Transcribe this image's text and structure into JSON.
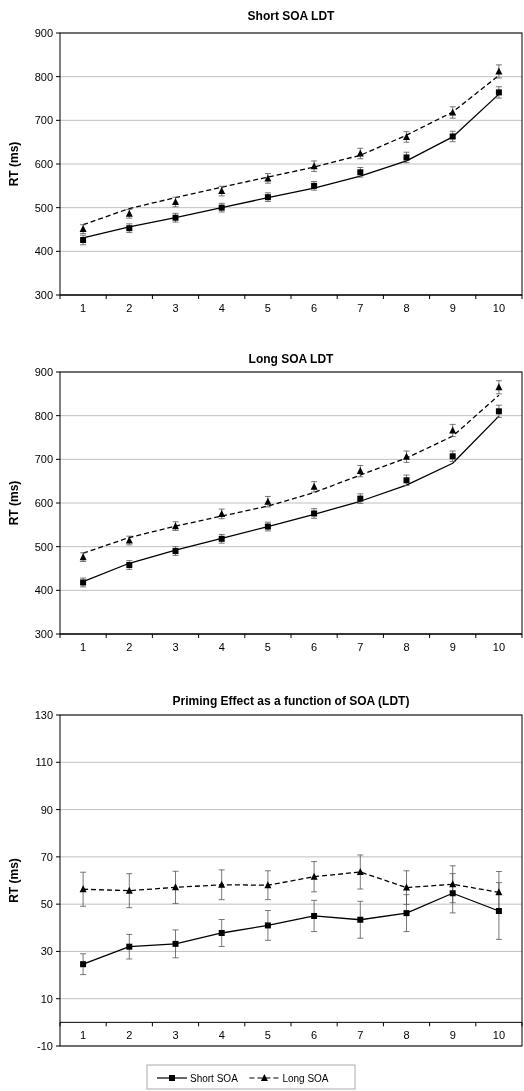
{
  "chart_data": [
    {
      "type": "line",
      "title": "Short SOA LDT",
      "ylabel": "RT (ms)",
      "categories": [
        "1",
        "2",
        "3",
        "4",
        "5",
        "6",
        "7",
        "8",
        "9",
        "10"
      ],
      "ylim": [
        300,
        900
      ],
      "yticks": [
        300,
        400,
        500,
        600,
        700,
        800,
        900
      ],
      "grid": "y",
      "series": [
        {
          "type": "line",
          "color": "#000000",
          "line_style": "solid",
          "marker": "none",
          "values": [
            431,
            456,
            477,
            500,
            523,
            545,
            572,
            607,
            662,
            760
          ]
        },
        {
          "type": "line",
          "color": "#000000",
          "line_style": "dashed",
          "marker": "none",
          "values": [
            461,
            498,
            523,
            547,
            570,
            593,
            620,
            666,
            719,
            803
          ]
        },
        {
          "type": "scatter",
          "color": "#000000",
          "marker": "square",
          "values": [
            426,
            453,
            477,
            500,
            524,
            550,
            581,
            615,
            663,
            764
          ],
          "errors": [
            11,
            10,
            10,
            10,
            10,
            10,
            11,
            12,
            12,
            13
          ]
        },
        {
          "type": "scatter",
          "color": "#000000",
          "marker": "triangle",
          "values": [
            451,
            486,
            513,
            538,
            567,
            595,
            624,
            662,
            718,
            812
          ],
          "errors": [
            10,
            10,
            11,
            11,
            11,
            12,
            12,
            12,
            13,
            15
          ]
        }
      ]
    },
    {
      "type": "line",
      "title": "Long SOA LDT",
      "ylabel": "RT (ms)",
      "categories": [
        "1",
        "2",
        "3",
        "4",
        "5",
        "6",
        "7",
        "8",
        "9",
        "10"
      ],
      "ylim": [
        300,
        900
      ],
      "yticks": [
        300,
        400,
        500,
        600,
        700,
        800,
        900
      ],
      "grid": "y",
      "series": [
        {
          "type": "line",
          "color": "#000000",
          "line_style": "solid",
          "marker": "none",
          "values": [
            420,
            462,
            492,
            519,
            546,
            574,
            604,
            641,
            691,
            799
          ]
        },
        {
          "type": "line",
          "color": "#000000",
          "line_style": "dashed",
          "marker": "none",
          "values": [
            485,
            521,
            547,
            570,
            593,
            624,
            664,
            703,
            753,
            847
          ]
        },
        {
          "type": "scatter",
          "color": "#000000",
          "marker": "square",
          "values": [
            418,
            458,
            490,
            518,
            546,
            576,
            610,
            652,
            707,
            810
          ],
          "errors": [
            10,
            10,
            10,
            10,
            10,
            11,
            11,
            12,
            12,
            14
          ]
        },
        {
          "type": "scatter",
          "color": "#000000",
          "marker": "triangle",
          "values": [
            476,
            514,
            547,
            575,
            603,
            637,
            673,
            706,
            766,
            865
          ],
          "errors": [
            10,
            10,
            10,
            11,
            12,
            12,
            13,
            13,
            14,
            15
          ]
        }
      ]
    },
    {
      "type": "line",
      "title": "Priming Effect as a function of SOA (LDT)",
      "ylabel": "RT (ms)",
      "categories": [
        "1",
        "2",
        "3",
        "4",
        "5",
        "6",
        "7",
        "8",
        "9",
        "10"
      ],
      "ylim": [
        -10,
        130
      ],
      "yticks": [
        -10,
        10,
        30,
        50,
        70,
        90,
        110,
        130
      ],
      "grid": "y",
      "legend": "bottom",
      "series": [
        {
          "name": "Short SOA",
          "color": "#000000",
          "line_style": "solid",
          "marker": "square",
          "values": [
            24.6,
            32.0,
            33.2,
            37.8,
            41.0,
            45.0,
            43.4,
            46.2,
            54.6,
            47.1
          ],
          "errors": [
            4.4,
            5.2,
            5.9,
            5.7,
            6.3,
            6.6,
            7.8,
            7.8,
            8.3,
            12
          ]
        },
        {
          "name": "Long SOA",
          "color": "#000000",
          "line_style": "dashed",
          "marker": "triangle",
          "values": [
            56.3,
            55.7,
            57.1,
            58.2,
            58.0,
            61.6,
            63.6,
            57.0,
            58.4,
            55.0
          ],
          "errors": [
            7.2,
            7.2,
            6.8,
            6.3,
            6.1,
            6.4,
            7.2,
            7.1,
            7.8,
            8.8
          ]
        }
      ]
    }
  ]
}
